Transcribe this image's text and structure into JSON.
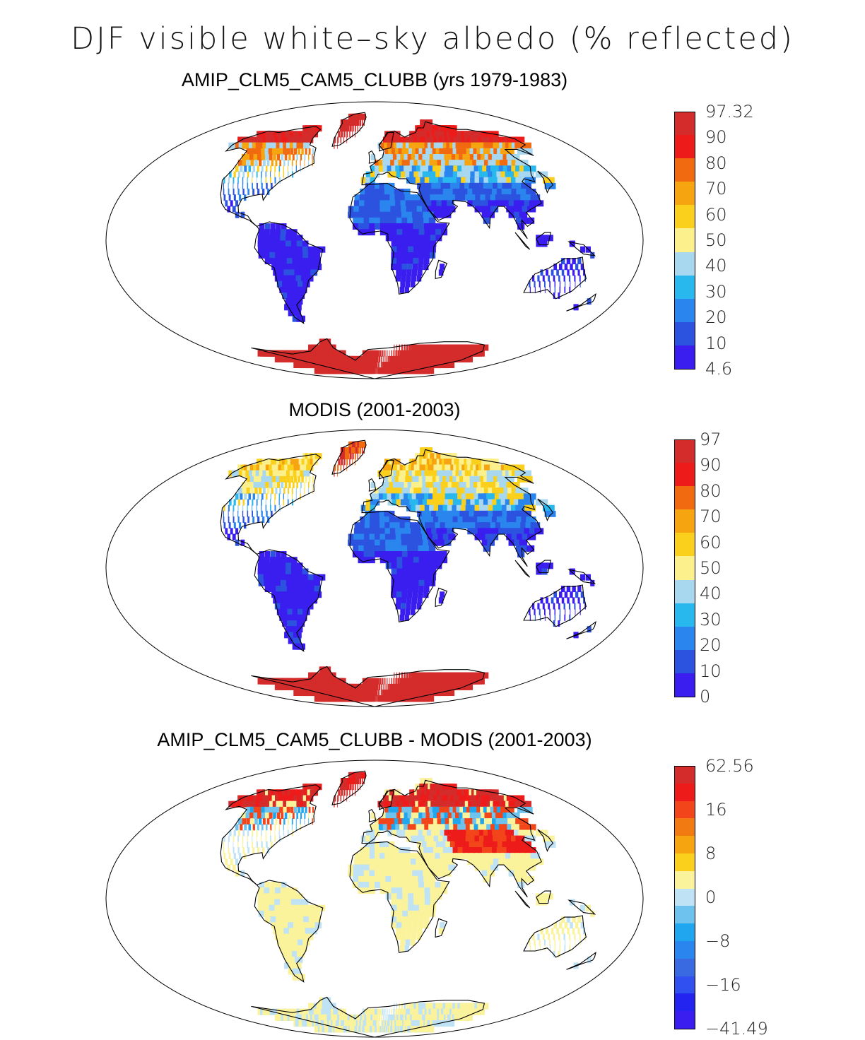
{
  "title": "DJF visible white–sky albedo (% reflected)",
  "panels": [
    {
      "title": "AMIP_CLM5_CAM5_CLUBB (yrs 1979-1983)",
      "colorbar": {
        "colors": [
          "#d42b2b",
          "#ee1b1b",
          "#f26a10",
          "#f6a511",
          "#fbd01c",
          "#fbf08c",
          "#a8d8f0",
          "#29b8ee",
          "#2a86ee",
          "#2c52e0",
          "#3a1ef0"
        ],
        "labels": [
          "97.32",
          "90",
          "80",
          "70",
          "60",
          "50",
          "40",
          "30",
          "20",
          "10",
          "4.6"
        ]
      }
    },
    {
      "title": "MODIS (2001-2003)",
      "colorbar": {
        "colors": [
          "#d42b2b",
          "#ee1b1b",
          "#f26a10",
          "#f6a511",
          "#fbd01c",
          "#fbf08c",
          "#a8d8f0",
          "#29b8ee",
          "#2a86ee",
          "#2c52e0",
          "#3a1ef0"
        ],
        "labels": [
          "97",
          "90",
          "80",
          "70",
          "60",
          "50",
          "40",
          "30",
          "20",
          "10",
          "0"
        ]
      }
    },
    {
      "title": "AMIP_CLM5_CAM5_CLUBB - MODIS (2001-2003)",
      "colorbar": {
        "colors": [
          "#d42b2b",
          "#ee1b1b",
          "#f2461a",
          "#f27a12",
          "#f6a511",
          "#fbd01c",
          "#fbf29c",
          "#bfe2f4",
          "#6ec3ee",
          "#1fa6ee",
          "#2a86ee",
          "#3a6ae2",
          "#3050f0",
          "#2424f0",
          "#3a1ef0"
        ],
        "labels": [
          "62.56",
          "16",
          "8",
          "0",
          "−8",
          "−16",
          "−41.49"
        ]
      }
    }
  ]
}
